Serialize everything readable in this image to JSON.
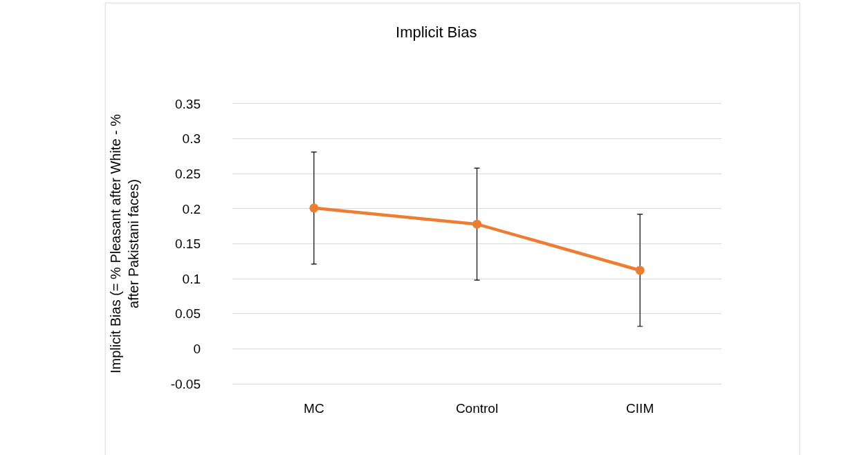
{
  "chart_data": {
    "type": "line",
    "title": "Implicit Bias",
    "ylabel": "Implicit Bias (= % Pleasant after White - % after Pakistani faces)",
    "categories": [
      "MC",
      "Control",
      "CIIM"
    ],
    "series": [
      {
        "color": "#ed7d31",
        "values": [
          0.201,
          0.178,
          0.112
        ],
        "errors": [
          0.08,
          0.08,
          0.08
        ]
      }
    ],
    "ylim": [
      -0.05,
      0.35
    ],
    "yticks": [
      -0.05,
      0,
      0.05,
      0.1,
      0.15,
      0.2,
      0.25,
      0.3,
      0.35
    ],
    "grid": "y",
    "marker": "circle",
    "line_style": "solid"
  }
}
